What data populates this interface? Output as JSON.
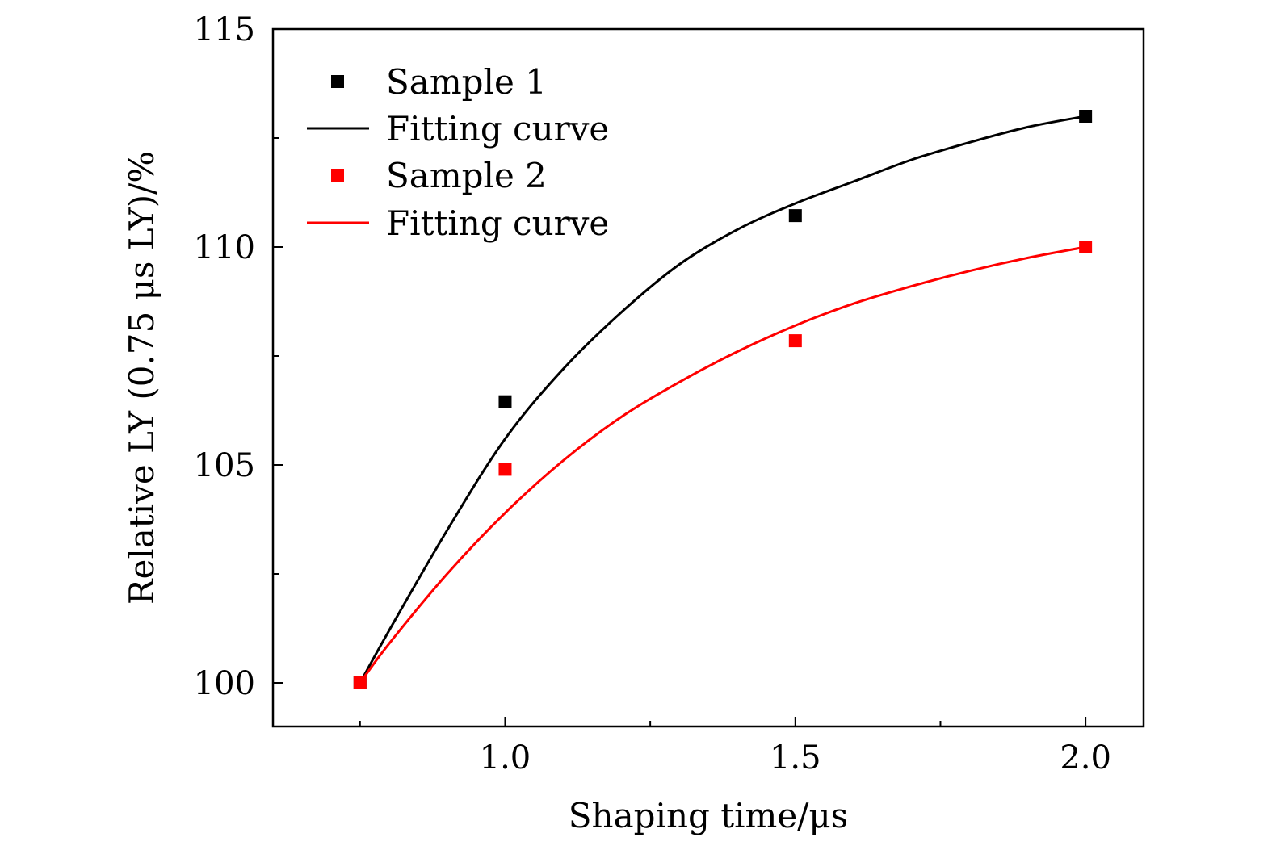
{
  "chart_data": {
    "type": "scatter",
    "title": "",
    "xlabel": "Shaping time/μs",
    "ylabel": "Relative LY (0.75 μs LY)/%",
    "xlim": [
      0.6,
      2.1
    ],
    "ylim": [
      99,
      115
    ],
    "x_ticks": [
      {
        "value": 0.75,
        "label": ""
      },
      {
        "value": 1.0,
        "label": "1.0"
      },
      {
        "value": 1.25,
        "label": ""
      },
      {
        "value": 1.5,
        "label": "1.5"
      },
      {
        "value": 1.75,
        "label": ""
      },
      {
        "value": 2.0,
        "label": "2.0"
      }
    ],
    "y_ticks": [
      {
        "value": 100,
        "label": "100"
      },
      {
        "value": 102.5,
        "label": ""
      },
      {
        "value": 105,
        "label": "105"
      },
      {
        "value": 107.5,
        "label": ""
      },
      {
        "value": 110,
        "label": "110"
      },
      {
        "value": 112.5,
        "label": ""
      },
      {
        "value": 115,
        "label": "115"
      }
    ],
    "grid": false,
    "legend_position": "top-left",
    "series": [
      {
        "name": "Sample 1",
        "kind": "points",
        "marker": "square",
        "color": "#000000",
        "x": [
          0.75,
          1.0,
          1.5,
          2.0
        ],
        "y": [
          100.0,
          106.45,
          110.72,
          113.0
        ]
      },
      {
        "name": "Fitting curve",
        "kind": "line",
        "color": "#000000",
        "x": [
          0.75,
          0.8,
          0.9,
          1.0,
          1.1,
          1.2,
          1.3,
          1.4,
          1.5,
          1.6,
          1.7,
          1.8,
          1.9,
          2.0
        ],
        "y": [
          100.0,
          101.2,
          103.5,
          105.6,
          107.2,
          108.5,
          109.6,
          110.4,
          111.0,
          111.5,
          112.0,
          112.4,
          112.75,
          113.0
        ]
      },
      {
        "name": "Sample 2",
        "kind": "points",
        "marker": "square",
        "color": "#ff0000",
        "x": [
          0.75,
          1.0,
          1.5,
          2.0
        ],
        "y": [
          100.0,
          104.9,
          107.85,
          110.0
        ]
      },
      {
        "name": "Fitting curve",
        "kind": "line",
        "color": "#ff0000",
        "x": [
          0.75,
          0.8,
          0.9,
          1.0,
          1.1,
          1.2,
          1.3,
          1.4,
          1.5,
          1.6,
          1.7,
          1.8,
          1.9,
          2.0
        ],
        "y": [
          100.0,
          100.9,
          102.5,
          103.9,
          105.1,
          106.1,
          106.9,
          107.6,
          108.2,
          108.7,
          109.1,
          109.45,
          109.75,
          110.0
        ]
      }
    ]
  }
}
